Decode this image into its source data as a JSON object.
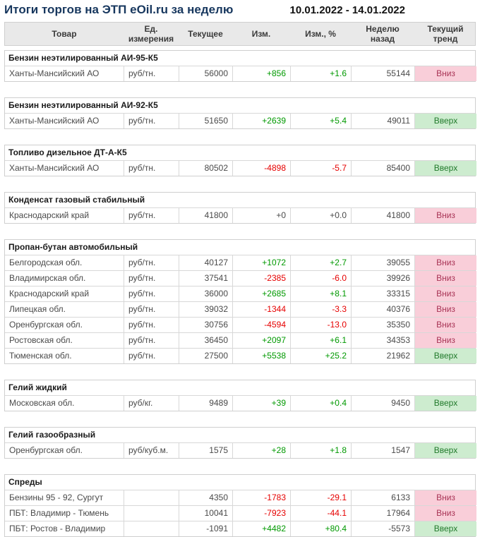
{
  "header": {
    "title": "Итоги торгов на ЭТП eOil.ru за неделю",
    "date_range": "10.01.2022 - 14.01.2022"
  },
  "columns": [
    "Товар",
    "Ед. измерения",
    "Текущее",
    "Изм.",
    "Изм., %",
    "Неделю назад",
    "Текущий тренд"
  ],
  "trend_labels": {
    "up": "Вверх",
    "down": "Вниз"
  },
  "colors": {
    "title": "#17375e",
    "positive": "#009900",
    "negative": "#e60000",
    "header_bg": "#e9e9e9",
    "border": "#cfcfcf",
    "trend_up_bg": "#cdeccf",
    "trend_up_text": "#217a2b",
    "trend_down_bg": "#f9ced9",
    "trend_down_text": "#a83355"
  },
  "sections": [
    {
      "title": "Бензин неэтилированный АИ-95-К5",
      "rows": [
        {
          "product": "Ханты-Мансийский АО",
          "unit": "руб/тн.",
          "current": "56000",
          "change": "+856",
          "change_pct": "+1.6",
          "week_ago": "55144",
          "trend": "Вниз"
        }
      ]
    },
    {
      "title": "Бензин неэтилированный АИ-92-К5",
      "rows": [
        {
          "product": "Ханты-Мансийский АО",
          "unit": "руб/тн.",
          "current": "51650",
          "change": "+2639",
          "change_pct": "+5.4",
          "week_ago": "49011",
          "trend": "Вверх"
        }
      ]
    },
    {
      "title": "Топливо дизельное ДТ-А-К5",
      "rows": [
        {
          "product": "Ханты-Мансийский АО",
          "unit": "руб/тн.",
          "current": "80502",
          "change": "-4898",
          "change_pct": "-5.7",
          "week_ago": "85400",
          "trend": "Вверх"
        }
      ]
    },
    {
      "title": "Конденсат газовый стабильный",
      "rows": [
        {
          "product": "Краснодарский край",
          "unit": "руб/тн.",
          "current": "41800",
          "change": "+0",
          "change_pct": "+0.0",
          "week_ago": "41800",
          "trend": "Вниз"
        }
      ]
    },
    {
      "title": "Пропан-бутан автомобильный",
      "rows": [
        {
          "product": "Белгородская обл.",
          "unit": "руб/тн.",
          "current": "40127",
          "change": "+1072",
          "change_pct": "+2.7",
          "week_ago": "39055",
          "trend": "Вниз"
        },
        {
          "product": "Владимирская обл.",
          "unit": "руб/тн.",
          "current": "37541",
          "change": "-2385",
          "change_pct": "-6.0",
          "week_ago": "39926",
          "trend": "Вниз"
        },
        {
          "product": "Краснодарский край",
          "unit": "руб/тн.",
          "current": "36000",
          "change": "+2685",
          "change_pct": "+8.1",
          "week_ago": "33315",
          "trend": "Вниз"
        },
        {
          "product": "Липецкая обл.",
          "unit": "руб/тн.",
          "current": "39032",
          "change": "-1344",
          "change_pct": "-3.3",
          "week_ago": "40376",
          "trend": "Вниз"
        },
        {
          "product": "Оренбургская обл.",
          "unit": "руб/тн.",
          "current": "30756",
          "change": "-4594",
          "change_pct": "-13.0",
          "week_ago": "35350",
          "trend": "Вниз"
        },
        {
          "product": "Ростовская обл.",
          "unit": "руб/тн.",
          "current": "36450",
          "change": "+2097",
          "change_pct": "+6.1",
          "week_ago": "34353",
          "trend": "Вниз"
        },
        {
          "product": "Тюменская обл.",
          "unit": "руб/тн.",
          "current": "27500",
          "change": "+5538",
          "change_pct": "+25.2",
          "week_ago": "21962",
          "trend": "Вверх"
        }
      ]
    },
    {
      "title": "Гелий жидкий",
      "rows": [
        {
          "product": "Московская обл.",
          "unit": "руб/кг.",
          "current": "9489",
          "change": "+39",
          "change_pct": "+0.4",
          "week_ago": "9450",
          "trend": "Вверх"
        }
      ]
    },
    {
      "title": "Гелий газообразный",
      "rows": [
        {
          "product": "Оренбургская обл.",
          "unit": "руб/куб.м.",
          "current": "1575",
          "change": "+28",
          "change_pct": "+1.8",
          "week_ago": "1547",
          "trend": "Вверх"
        }
      ]
    },
    {
      "title": "Спреды",
      "rows": [
        {
          "product": "Бензины 95 - 92, Сургут",
          "unit": "",
          "current": "4350",
          "change": "-1783",
          "change_pct": "-29.1",
          "week_ago": "6133",
          "trend": "Вниз"
        },
        {
          "product": "ПБТ: Владимир - Тюмень",
          "unit": "",
          "current": "10041",
          "change": "-7923",
          "change_pct": "-44.1",
          "week_ago": "17964",
          "trend": "Вниз"
        },
        {
          "product": "ПБТ: Ростов - Владимир",
          "unit": "",
          "current": "-1091",
          "change": "+4482",
          "change_pct": "+80.4",
          "week_ago": "-5573",
          "trend": "Вверх"
        }
      ]
    }
  ]
}
